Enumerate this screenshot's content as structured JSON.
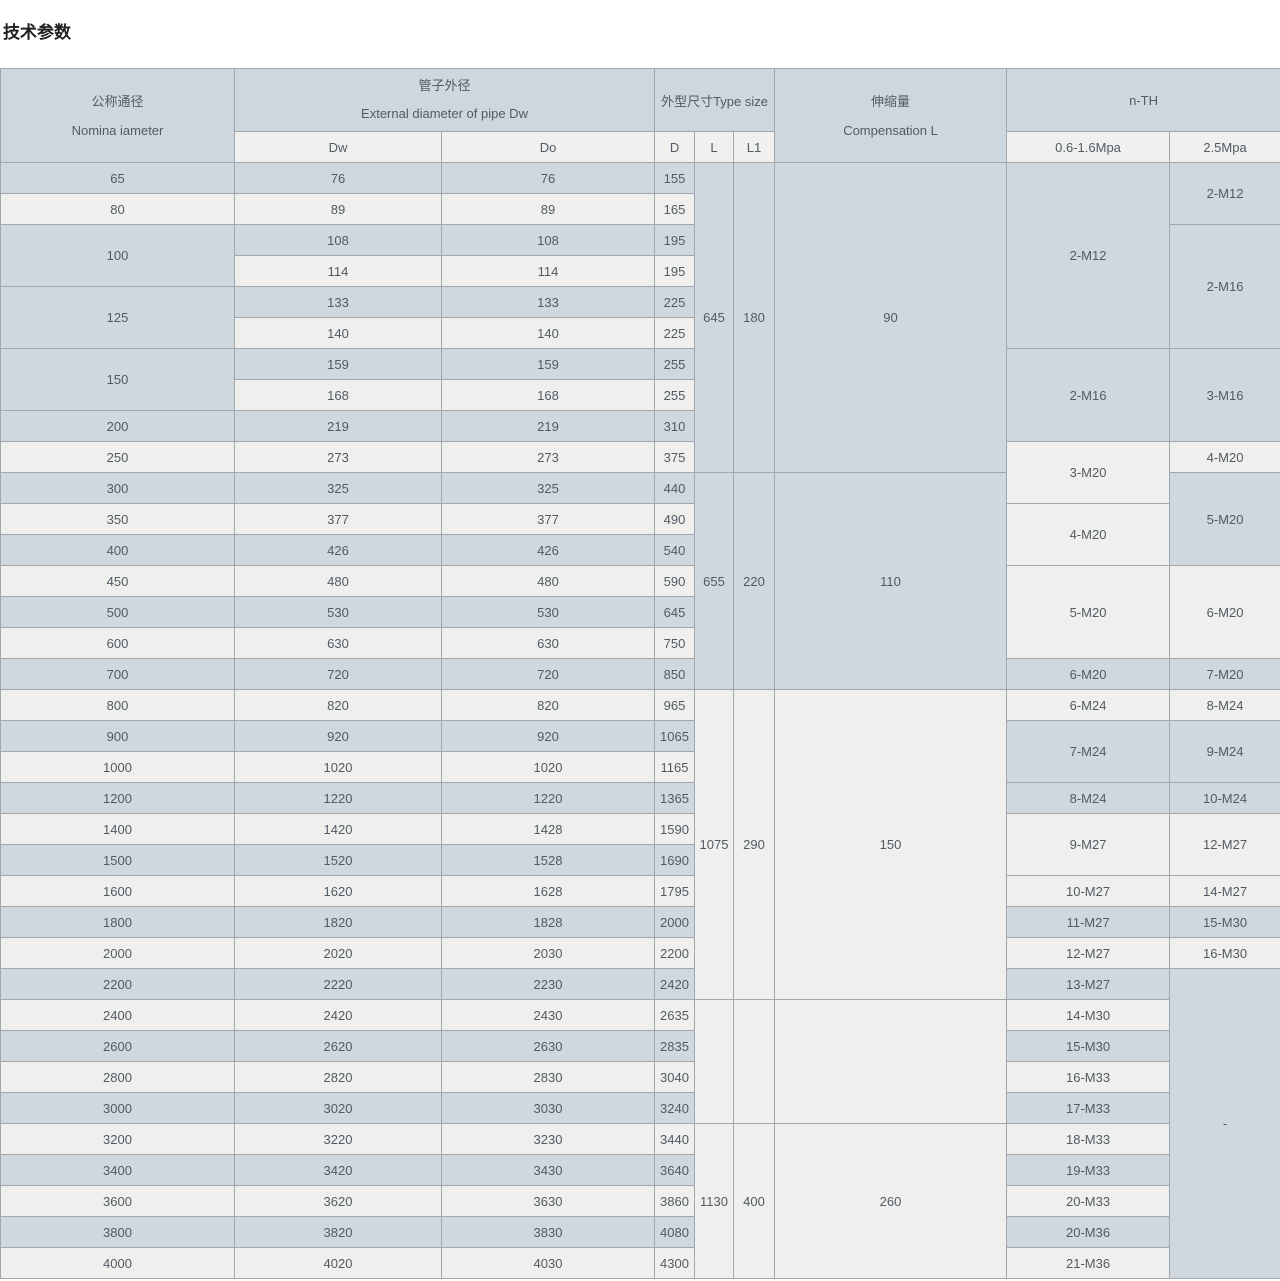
{
  "title": "技术参数",
  "colors": {
    "row_blue": "#cfd8de",
    "row_light": "#efefee",
    "header_blue": "#ccd7df",
    "header_light": "#f0f0ef",
    "border": "#a1a7ac",
    "text": "#525b63"
  },
  "table": {
    "header": {
      "nominal_zh": "公称通径",
      "nominal_en": "Nomina iameter",
      "pipe_zh": "管子外径",
      "pipe_en": "External diameter of pipe Dw",
      "type_size": "外型尺寸Type size",
      "comp_zh": "伸缩量",
      "comp_en": "Compensation L",
      "nth": "n-TH",
      "dw": "Dw",
      "do": "Do",
      "d": "D",
      "l": "L",
      "l1": "L1",
      "p_low": "0.6-1.6Mpa",
      "p_high": "2.5Mpa"
    },
    "body_rows": [
      [
        {
          "n": "dn",
          "t": "65"
        },
        {
          "n": "dw",
          "t": "76"
        },
        {
          "n": "do",
          "t": "76"
        },
        {
          "n": "d",
          "t": "155"
        },
        {
          "n": "l",
          "t": "645",
          "rs": 10
        },
        {
          "n": "l1",
          "t": "180",
          "rs": 10
        },
        {
          "n": "comp",
          "t": "90",
          "rs": 10
        },
        {
          "n": "nth_low",
          "t": "2-M12",
          "rs": 6
        },
        {
          "n": "nth_high",
          "t": "2-M12",
          "rs": 2
        }
      ],
      [
        {
          "n": "dn",
          "t": "80"
        },
        {
          "n": "dw",
          "t": "89"
        },
        {
          "n": "do",
          "t": "89"
        },
        {
          "n": "d",
          "t": "165"
        }
      ],
      [
        {
          "n": "dn",
          "t": "100",
          "rs": 2
        },
        {
          "n": "dw",
          "t": "108"
        },
        {
          "n": "do",
          "t": "108"
        },
        {
          "n": "d",
          "t": "195"
        },
        {
          "n": "nth_high",
          "t": "2-M16",
          "rs": 4
        }
      ],
      [
        {
          "n": "dw",
          "t": "114"
        },
        {
          "n": "do",
          "t": "114"
        },
        {
          "n": "d",
          "t": "195"
        }
      ],
      [
        {
          "n": "dn",
          "t": "125",
          "rs": 2
        },
        {
          "n": "dw",
          "t": "133"
        },
        {
          "n": "do",
          "t": "133"
        },
        {
          "n": "d",
          "t": "225"
        }
      ],
      [
        {
          "n": "dw",
          "t": "140"
        },
        {
          "n": "do",
          "t": "140"
        },
        {
          "n": "d",
          "t": "225"
        }
      ],
      [
        {
          "n": "dn",
          "t": "150",
          "rs": 2
        },
        {
          "n": "dw",
          "t": "159"
        },
        {
          "n": "do",
          "t": "159"
        },
        {
          "n": "d",
          "t": "255"
        },
        {
          "n": "nth_low",
          "t": "2-M16",
          "rs": 3
        },
        {
          "n": "nth_high",
          "t": "3-M16",
          "rs": 3
        }
      ],
      [
        {
          "n": "dw",
          "t": "168"
        },
        {
          "n": "do",
          "t": "168"
        },
        {
          "n": "d",
          "t": "255"
        }
      ],
      [
        {
          "n": "dn",
          "t": "200"
        },
        {
          "n": "dw",
          "t": "219"
        },
        {
          "n": "do",
          "t": "219"
        },
        {
          "n": "d",
          "t": "310"
        }
      ],
      [
        {
          "n": "dn",
          "t": "250"
        },
        {
          "n": "dw",
          "t": "273"
        },
        {
          "n": "do",
          "t": "273"
        },
        {
          "n": "d",
          "t": "375"
        },
        {
          "n": "nth_low",
          "t": "3-M20",
          "rs": 2
        },
        {
          "n": "nth_high",
          "t": "4-M20"
        }
      ],
      [
        {
          "n": "dn",
          "t": "300"
        },
        {
          "n": "dw",
          "t": "325"
        },
        {
          "n": "do",
          "t": "325"
        },
        {
          "n": "d",
          "t": "440"
        },
        {
          "n": "l",
          "t": "655",
          "rs": 7
        },
        {
          "n": "l1",
          "t": "220",
          "rs": 7
        },
        {
          "n": "comp",
          "t": "110",
          "rs": 7
        },
        {
          "n": "nth_high",
          "t": "5-M20",
          "rs": 3
        }
      ],
      [
        {
          "n": "dn",
          "t": "350"
        },
        {
          "n": "dw",
          "t": "377"
        },
        {
          "n": "do",
          "t": "377"
        },
        {
          "n": "d",
          "t": "490"
        },
        {
          "n": "nth_low",
          "t": "4-M20",
          "rs": 2
        }
      ],
      [
        {
          "n": "dn",
          "t": "400"
        },
        {
          "n": "dw",
          "t": "426"
        },
        {
          "n": "do",
          "t": "426"
        },
        {
          "n": "d",
          "t": "540"
        }
      ],
      [
        {
          "n": "dn",
          "t": "450"
        },
        {
          "n": "dw",
          "t": "480"
        },
        {
          "n": "do",
          "t": "480"
        },
        {
          "n": "d",
          "t": "590"
        },
        {
          "n": "nth_low",
          "t": "5-M20",
          "rs": 3
        },
        {
          "n": "nth_high",
          "t": "6-M20",
          "rs": 3
        }
      ],
      [
        {
          "n": "dn",
          "t": "500"
        },
        {
          "n": "dw",
          "t": "530"
        },
        {
          "n": "do",
          "t": "530"
        },
        {
          "n": "d",
          "t": "645"
        }
      ],
      [
        {
          "n": "dn",
          "t": "600"
        },
        {
          "n": "dw",
          "t": "630"
        },
        {
          "n": "do",
          "t": "630"
        },
        {
          "n": "d",
          "t": "750"
        }
      ],
      [
        {
          "n": "dn",
          "t": "700"
        },
        {
          "n": "dw",
          "t": "720"
        },
        {
          "n": "do",
          "t": "720"
        },
        {
          "n": "d",
          "t": "850"
        },
        {
          "n": "nth_low",
          "t": "6-M20"
        },
        {
          "n": "nth_high",
          "t": "7-M20"
        }
      ],
      [
        {
          "n": "dn",
          "t": "800"
        },
        {
          "n": "dw",
          "t": "820"
        },
        {
          "n": "do",
          "t": "820"
        },
        {
          "n": "d",
          "t": "965"
        },
        {
          "n": "l",
          "t": "1075",
          "rs": 10
        },
        {
          "n": "l1",
          "t": "290",
          "rs": 10
        },
        {
          "n": "comp",
          "t": "150",
          "rs": 10
        },
        {
          "n": "nth_low",
          "t": "6-M24"
        },
        {
          "n": "nth_high",
          "t": "8-M24"
        }
      ],
      [
        {
          "n": "dn",
          "t": "900"
        },
        {
          "n": "dw",
          "t": "920"
        },
        {
          "n": "do",
          "t": "920"
        },
        {
          "n": "d",
          "t": "1065"
        },
        {
          "n": "nth_low",
          "t": "7-M24",
          "rs": 2
        },
        {
          "n": "nth_high",
          "t": "9-M24",
          "rs": 2
        }
      ],
      [
        {
          "n": "dn",
          "t": "1000"
        },
        {
          "n": "dw",
          "t": "1020"
        },
        {
          "n": "do",
          "t": "1020"
        },
        {
          "n": "d",
          "t": "1165"
        }
      ],
      [
        {
          "n": "dn",
          "t": "1200"
        },
        {
          "n": "dw",
          "t": "1220"
        },
        {
          "n": "do",
          "t": "1220"
        },
        {
          "n": "d",
          "t": "1365"
        },
        {
          "n": "nth_low",
          "t": "8-M24"
        },
        {
          "n": "nth_high",
          "t": "10-M24"
        }
      ],
      [
        {
          "n": "dn",
          "t": "1400"
        },
        {
          "n": "dw",
          "t": "1420"
        },
        {
          "n": "do",
          "t": "1428"
        },
        {
          "n": "d",
          "t": "1590"
        },
        {
          "n": "nth_low",
          "t": "9-M27",
          "rs": 2
        },
        {
          "n": "nth_high",
          "t": "12-M27",
          "rs": 2
        }
      ],
      [
        {
          "n": "dn",
          "t": "1500"
        },
        {
          "n": "dw",
          "t": "1520"
        },
        {
          "n": "do",
          "t": "1528"
        },
        {
          "n": "d",
          "t": "1690"
        }
      ],
      [
        {
          "n": "dn",
          "t": "1600"
        },
        {
          "n": "dw",
          "t": "1620"
        },
        {
          "n": "do",
          "t": "1628"
        },
        {
          "n": "d",
          "t": "1795"
        },
        {
          "n": "nth_low",
          "t": "10-M27"
        },
        {
          "n": "nth_high",
          "t": "14-M27"
        }
      ],
      [
        {
          "n": "dn",
          "t": "1800"
        },
        {
          "n": "dw",
          "t": "1820"
        },
        {
          "n": "do",
          "t": "1828"
        },
        {
          "n": "d",
          "t": "2000"
        },
        {
          "n": "nth_low",
          "t": "11-M27"
        },
        {
          "n": "nth_high",
          "t": "15-M30"
        }
      ],
      [
        {
          "n": "dn",
          "t": "2000"
        },
        {
          "n": "dw",
          "t": "2020"
        },
        {
          "n": "do",
          "t": "2030"
        },
        {
          "n": "d",
          "t": "2200"
        },
        {
          "n": "nth_low",
          "t": "12-M27"
        },
        {
          "n": "nth_high",
          "t": "16-M30"
        }
      ],
      [
        {
          "n": "dn",
          "t": "2200"
        },
        {
          "n": "dw",
          "t": "2220"
        },
        {
          "n": "do",
          "t": "2230"
        },
        {
          "n": "d",
          "t": "2420"
        },
        {
          "n": "nth_low",
          "t": "13-M27"
        },
        {
          "n": "nth_high",
          "t": "-",
          "rs": 10
        }
      ],
      [
        {
          "n": "dn",
          "t": "2400"
        },
        {
          "n": "dw",
          "t": "2420"
        },
        {
          "n": "do",
          "t": "2430"
        },
        {
          "n": "d",
          "t": "2635"
        },
        {
          "n": "l",
          "t": "",
          "rs": 4
        },
        {
          "n": "l1",
          "t": "",
          "rs": 4
        },
        {
          "n": "comp",
          "t": "",
          "rs": 4
        },
        {
          "n": "nth_low",
          "t": "14-M30"
        }
      ],
      [
        {
          "n": "dn",
          "t": "2600"
        },
        {
          "n": "dw",
          "t": "2620"
        },
        {
          "n": "do",
          "t": "2630"
        },
        {
          "n": "d",
          "t": "2835"
        },
        {
          "n": "nth_low",
          "t": "15-M30"
        }
      ],
      [
        {
          "n": "dn",
          "t": "2800"
        },
        {
          "n": "dw",
          "t": "2820"
        },
        {
          "n": "do",
          "t": "2830"
        },
        {
          "n": "d",
          "t": "3040"
        },
        {
          "n": "nth_low",
          "t": "16-M33"
        }
      ],
      [
        {
          "n": "dn",
          "t": "3000"
        },
        {
          "n": "dw",
          "t": "3020"
        },
        {
          "n": "do",
          "t": "3030"
        },
        {
          "n": "d",
          "t": "3240"
        },
        {
          "n": "nth_low",
          "t": "17-M33"
        }
      ],
      [
        {
          "n": "dn",
          "t": "3200"
        },
        {
          "n": "dw",
          "t": "3220"
        },
        {
          "n": "do",
          "t": "3230"
        },
        {
          "n": "d",
          "t": "3440"
        },
        {
          "n": "l",
          "t": "1130",
          "rs": 5
        },
        {
          "n": "l1",
          "t": "400",
          "rs": 5
        },
        {
          "n": "comp",
          "t": "260",
          "rs": 5
        },
        {
          "n": "nth_low",
          "t": "18-M33"
        }
      ],
      [
        {
          "n": "dn",
          "t": "3400"
        },
        {
          "n": "dw",
          "t": "3420"
        },
        {
          "n": "do",
          "t": "3430"
        },
        {
          "n": "d",
          "t": "3640"
        },
        {
          "n": "nth_low",
          "t": "19-M33"
        }
      ],
      [
        {
          "n": "dn",
          "t": "3600"
        },
        {
          "n": "dw",
          "t": "3620"
        },
        {
          "n": "do",
          "t": "3630"
        },
        {
          "n": "d",
          "t": "3860"
        },
        {
          "n": "nth_low",
          "t": "20-M33"
        }
      ],
      [
        {
          "n": "dn",
          "t": "3800"
        },
        {
          "n": "dw",
          "t": "3820"
        },
        {
          "n": "do",
          "t": "3830"
        },
        {
          "n": "d",
          "t": "4080"
        },
        {
          "n": "nth_low",
          "t": "20-M36"
        }
      ],
      [
        {
          "n": "dn",
          "t": "4000"
        },
        {
          "n": "dw",
          "t": "4020"
        },
        {
          "n": "do",
          "t": "4030"
        },
        {
          "n": "d",
          "t": "4300"
        },
        {
          "n": "nth_low",
          "t": "21-M36"
        }
      ]
    ]
  }
}
